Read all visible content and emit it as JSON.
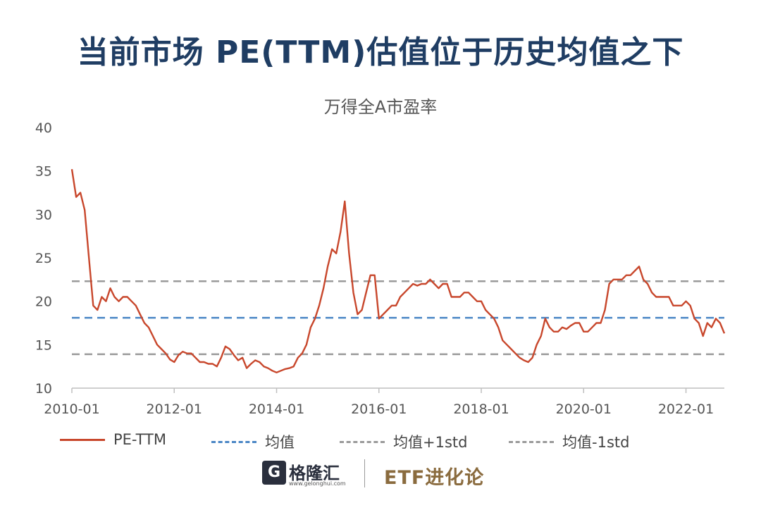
{
  "headline": "当前市场 PE(TTM)估值位于历史均值之下",
  "footer": {
    "logo_glyph": "G",
    "logo_name": "格隆汇",
    "logo_url": "www.gelonghui.com",
    "brand": "ETF进化论"
  },
  "chart_data": {
    "type": "line",
    "title": "万得全A市盈率",
    "xlabel": "",
    "ylabel": "",
    "ylim": [
      10,
      40
    ],
    "yticks": [
      10,
      15,
      20,
      25,
      30,
      35,
      40
    ],
    "xlim": [
      "2010-01",
      "2022-10"
    ],
    "xticks": [
      "2010-01",
      "2012-01",
      "2014-01",
      "2016-01",
      "2018-01",
      "2020-01",
      "2022-01"
    ],
    "grid": false,
    "legend_position": "bottom",
    "series": [
      {
        "name": "PE-TTM",
        "style": "solid",
        "color": "#c8472c",
        "x": [
          "2010-01",
          "2010-02",
          "2010-03",
          "2010-04",
          "2010-05",
          "2010-06",
          "2010-07",
          "2010-08",
          "2010-09",
          "2010-10",
          "2010-11",
          "2010-12",
          "2011-01",
          "2011-02",
          "2011-03",
          "2011-04",
          "2011-05",
          "2011-06",
          "2011-07",
          "2011-08",
          "2011-09",
          "2011-10",
          "2011-11",
          "2011-12",
          "2012-01",
          "2012-02",
          "2012-03",
          "2012-04",
          "2012-05",
          "2012-06",
          "2012-07",
          "2012-08",
          "2012-09",
          "2012-10",
          "2012-11",
          "2012-12",
          "2013-01",
          "2013-02",
          "2013-03",
          "2013-04",
          "2013-05",
          "2013-06",
          "2013-07",
          "2013-08",
          "2013-09",
          "2013-10",
          "2013-11",
          "2013-12",
          "2014-01",
          "2014-02",
          "2014-03",
          "2014-04",
          "2014-05",
          "2014-06",
          "2014-07",
          "2014-08",
          "2014-09",
          "2014-10",
          "2014-11",
          "2014-12",
          "2015-01",
          "2015-02",
          "2015-03",
          "2015-04",
          "2015-05",
          "2015-06",
          "2015-07",
          "2015-08",
          "2015-09",
          "2015-10",
          "2015-11",
          "2015-12",
          "2016-01",
          "2016-02",
          "2016-03",
          "2016-04",
          "2016-05",
          "2016-06",
          "2016-07",
          "2016-08",
          "2016-09",
          "2016-10",
          "2016-11",
          "2016-12",
          "2017-01",
          "2017-02",
          "2017-03",
          "2017-04",
          "2017-05",
          "2017-06",
          "2017-07",
          "2017-08",
          "2017-09",
          "2017-10",
          "2017-11",
          "2017-12",
          "2018-01",
          "2018-02",
          "2018-03",
          "2018-04",
          "2018-05",
          "2018-06",
          "2018-07",
          "2018-08",
          "2018-09",
          "2018-10",
          "2018-11",
          "2018-12",
          "2019-01",
          "2019-02",
          "2019-03",
          "2019-04",
          "2019-05",
          "2019-06",
          "2019-07",
          "2019-08",
          "2019-09",
          "2019-10",
          "2019-11",
          "2019-12",
          "2020-01",
          "2020-02",
          "2020-03",
          "2020-04",
          "2020-05",
          "2020-06",
          "2020-07",
          "2020-08",
          "2020-09",
          "2020-10",
          "2020-11",
          "2020-12",
          "2021-01",
          "2021-02",
          "2021-03",
          "2021-04",
          "2021-05",
          "2021-06",
          "2021-07",
          "2021-08",
          "2021-09",
          "2021-10",
          "2021-11",
          "2021-12",
          "2022-01",
          "2022-02",
          "2022-03",
          "2022-04",
          "2022-05",
          "2022-06",
          "2022-07",
          "2022-08",
          "2022-09",
          "2022-10"
        ],
        "values": [
          35.2,
          32.0,
          32.5,
          30.5,
          25.0,
          19.5,
          19.0,
          20.5,
          20.0,
          21.5,
          20.5,
          20.0,
          20.5,
          20.5,
          20.0,
          19.5,
          18.5,
          17.5,
          17.0,
          16.0,
          15.0,
          14.5,
          14.0,
          13.3,
          13.0,
          13.8,
          14.2,
          14.0,
          14.0,
          13.5,
          13.0,
          13.0,
          12.8,
          12.8,
          12.5,
          13.5,
          14.8,
          14.5,
          13.8,
          13.2,
          13.5,
          12.3,
          12.8,
          13.2,
          13.0,
          12.5,
          12.3,
          12.0,
          11.8,
          12.0,
          12.2,
          12.3,
          12.5,
          13.5,
          14.0,
          15.0,
          17.0,
          18.0,
          19.5,
          21.5,
          24.0,
          26.0,
          25.5,
          28.0,
          31.5,
          25.5,
          21.0,
          18.5,
          19.0,
          21.0,
          23.0,
          23.0,
          18.0,
          18.5,
          19.0,
          19.5,
          19.5,
          20.5,
          21.0,
          21.5,
          22.0,
          21.8,
          22.0,
          22.0,
          22.5,
          22.0,
          21.5,
          22.0,
          22.0,
          20.5,
          20.5,
          20.5,
          21.0,
          21.0,
          20.5,
          20.0,
          20.0,
          19.0,
          18.5,
          18.0,
          17.0,
          15.5,
          15.0,
          14.5,
          14.0,
          13.5,
          13.2,
          13.0,
          13.5,
          15.0,
          16.0,
          18.0,
          17.0,
          16.5,
          16.5,
          17.0,
          16.8,
          17.2,
          17.5,
          17.5,
          16.5,
          16.5,
          17.0,
          17.5,
          17.5,
          19.0,
          22.0,
          22.5,
          22.5,
          22.5,
          23.0,
          23.0,
          23.5,
          24.0,
          22.5,
          22.0,
          21.0,
          20.5,
          20.5,
          20.5,
          20.5,
          19.5,
          19.5,
          19.5,
          20.0,
          19.5,
          18.0,
          17.5,
          16.0,
          17.5,
          17.0,
          18.0,
          17.5,
          16.3
        ]
      },
      {
        "name": "均值",
        "style": "dashed",
        "color": "#4a86c5",
        "value": 18.1
      },
      {
        "name": "均值+1std",
        "style": "dashed",
        "color": "#9a9a9a",
        "value": 22.3
      },
      {
        "name": "均值-1std",
        "style": "dashed",
        "color": "#9a9a9a",
        "value": 13.9
      }
    ]
  }
}
